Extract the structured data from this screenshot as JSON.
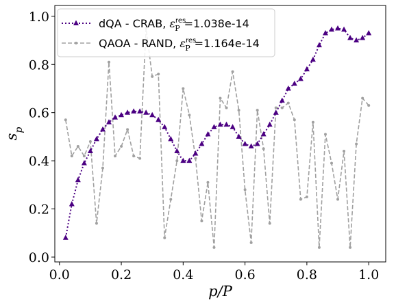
{
  "chart_data": {
    "type": "line",
    "xlabel": "p/P",
    "ylabel": "s_p",
    "xlim": [
      -0.015,
      1.055
    ],
    "ylim": [
      -0.02,
      1.045
    ],
    "xticks": [
      0.0,
      0.2,
      0.4,
      0.6,
      0.8,
      1.0
    ],
    "xtick_labels": [
      "0.0",
      "0.2",
      "0.4",
      "0.6",
      "0.8",
      "1.0"
    ],
    "yticks": [
      0.0,
      0.2,
      0.4,
      0.6,
      0.8,
      1.0
    ],
    "ytick_labels": [
      "0.0",
      "0.2",
      "0.4",
      "0.6",
      "0.8",
      "1.0"
    ],
    "grid": false,
    "legend_position": "top-left",
    "legend_suffix_sub": "P",
    "legend_suffix_sup": "res",
    "series": [
      {
        "name": "dQA - CRAB",
        "legend_prefix": "dQA - CRAB, ",
        "legend_value": "=1.038e-14",
        "color": "#4b0082",
        "style": "dotted",
        "marker": "triangle",
        "x": [
          0.02,
          0.04,
          0.06,
          0.08,
          0.1,
          0.12,
          0.14,
          0.16,
          0.18,
          0.2,
          0.22,
          0.24,
          0.26,
          0.28,
          0.3,
          0.32,
          0.34,
          0.36,
          0.38,
          0.4,
          0.42,
          0.44,
          0.46,
          0.48,
          0.5,
          0.52,
          0.54,
          0.56,
          0.58,
          0.6,
          0.62,
          0.64,
          0.66,
          0.68,
          0.7,
          0.72,
          0.74,
          0.76,
          0.78,
          0.8,
          0.82,
          0.84,
          0.86,
          0.88,
          0.9,
          0.92,
          0.94,
          0.96,
          0.98,
          1.0
        ],
        "values": [
          0.08,
          0.22,
          0.32,
          0.39,
          0.44,
          0.49,
          0.53,
          0.56,
          0.58,
          0.59,
          0.6,
          0.605,
          0.605,
          0.6,
          0.59,
          0.57,
          0.54,
          0.49,
          0.44,
          0.4,
          0.4,
          0.43,
          0.47,
          0.51,
          0.54,
          0.55,
          0.55,
          0.54,
          0.5,
          0.47,
          0.46,
          0.47,
          0.51,
          0.55,
          0.6,
          0.65,
          0.7,
          0.72,
          0.74,
          0.78,
          0.82,
          0.88,
          0.93,
          0.945,
          0.95,
          0.945,
          0.91,
          0.9,
          0.91,
          0.93
        ]
      },
      {
        "name": "QAOA - RAND",
        "legend_prefix": "QAOA - RAND, ",
        "legend_value": "=1.164e-14",
        "color": "#a0a0a0",
        "style": "dashed",
        "marker": "dot",
        "x": [
          0.02,
          0.04,
          0.06,
          0.08,
          0.1,
          0.12,
          0.14,
          0.16,
          0.18,
          0.2,
          0.22,
          0.24,
          0.26,
          0.28,
          0.3,
          0.32,
          0.34,
          0.36,
          0.38,
          0.4,
          0.42,
          0.44,
          0.46,
          0.48,
          0.5,
          0.52,
          0.54,
          0.56,
          0.58,
          0.6,
          0.62,
          0.64,
          0.66,
          0.68,
          0.7,
          0.72,
          0.74,
          0.76,
          0.78,
          0.8,
          0.82,
          0.84,
          0.86,
          0.88,
          0.9,
          0.92,
          0.94,
          0.96,
          0.98,
          1.0
        ],
        "values": [
          0.57,
          0.42,
          0.46,
          0.42,
          0.48,
          0.14,
          0.37,
          0.81,
          0.42,
          0.46,
          0.53,
          0.42,
          0.41,
          0.95,
          0.75,
          0.76,
          0.08,
          0.24,
          0.4,
          0.7,
          0.59,
          0.41,
          0.15,
          0.31,
          0.04,
          0.66,
          0.62,
          0.77,
          0.61,
          0.28,
          0.06,
          0.61,
          0.45,
          0.14,
          0.62,
          0.62,
          0.64,
          0.57,
          0.24,
          0.25,
          0.56,
          0.04,
          0.51,
          0.39,
          0.24,
          0.44,
          0.04,
          0.47,
          0.66,
          0.63
        ]
      }
    ]
  }
}
